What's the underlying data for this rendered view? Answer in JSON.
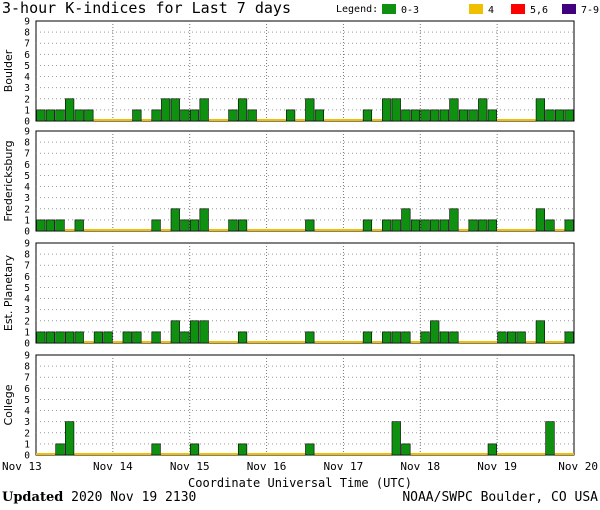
{
  "title": "3-hour K-indices for Last 7 days",
  "legend": {
    "label": "Legend:",
    "items": [
      {
        "label": "0-3",
        "color": "#109010"
      },
      {
        "label": "4",
        "color": "#f0c000"
      },
      {
        "label": "5,6",
        "color": "#ff0000"
      },
      {
        "label": "7-9",
        "color": "#400080"
      }
    ]
  },
  "footer": {
    "updated_label": "Updated",
    "updated_value": " 2020 Nov 19 2130",
    "source": "NOAA/SWPC Boulder, CO USA"
  },
  "chart_data": {
    "type": "bar",
    "xlabel": "Coordinate Universal Time (UTC)",
    "x_ticks": [
      "Nov 13",
      "Nov 14",
      "Nov 15",
      "Nov 16",
      "Nov 17",
      "Nov 18",
      "Nov 19",
      "Nov 20"
    ],
    "bins_per_day": 8,
    "ylim": [
      0,
      9
    ],
    "y_ticks": [
      0,
      1,
      2,
      3,
      4,
      5,
      6,
      7,
      8,
      9
    ],
    "grid": true,
    "panels": [
      {
        "name": "Boulder",
        "values": [
          1,
          1,
          1,
          2,
          1,
          1,
          0,
          0,
          0,
          0,
          1,
          0,
          1,
          2,
          2,
          1,
          1,
          2,
          0,
          0,
          1,
          2,
          1,
          0,
          0,
          0,
          1,
          0,
          2,
          1,
          0,
          0,
          0,
          0,
          1,
          0,
          2,
          2,
          1,
          1,
          1,
          1,
          1,
          2,
          1,
          1,
          2,
          1,
          0,
          0,
          0,
          0,
          2,
          1,
          1,
          1,
          0
        ]
      },
      {
        "name": "Fredericksburg",
        "values": [
          1,
          1,
          1,
          0,
          1,
          0,
          0,
          0,
          0,
          0,
          0,
          0,
          1,
          0,
          2,
          1,
          1,
          2,
          0,
          0,
          1,
          1,
          0,
          0,
          0,
          0,
          0,
          0,
          1,
          0,
          0,
          0,
          0,
          0,
          1,
          0,
          1,
          1,
          2,
          1,
          1,
          1,
          1,
          2,
          0,
          1,
          1,
          1,
          0,
          0,
          0,
          0,
          2,
          1,
          0,
          1,
          0
        ]
      },
      {
        "name": "Est. Planetary",
        "values": [
          1,
          1,
          1,
          1,
          1,
          0,
          1,
          1,
          0,
          1,
          1,
          0,
          1,
          0,
          2,
          1,
          2,
          2,
          0,
          0,
          0,
          1,
          0,
          0,
          0,
          0,
          0,
          0,
          1,
          0,
          0,
          0,
          0,
          0,
          1,
          0,
          1,
          1,
          1,
          0,
          1,
          2,
          1,
          1,
          0,
          0,
          0,
          0,
          1,
          1,
          1,
          0,
          2,
          0,
          0,
          1,
          0
        ]
      },
      {
        "name": "College",
        "values": [
          0,
          0,
          1,
          3,
          0,
          0,
          0,
          0,
          0,
          0,
          0,
          0,
          1,
          0,
          0,
          0,
          1,
          0,
          0,
          0,
          0,
          1,
          0,
          0,
          0,
          0,
          0,
          0,
          1,
          0,
          0,
          0,
          0,
          0,
          0,
          0,
          0,
          3,
          1,
          0,
          0,
          0,
          0,
          0,
          0,
          0,
          0,
          1,
          0,
          0,
          0,
          0,
          0,
          3,
          0,
          0,
          0
        ]
      }
    ]
  }
}
